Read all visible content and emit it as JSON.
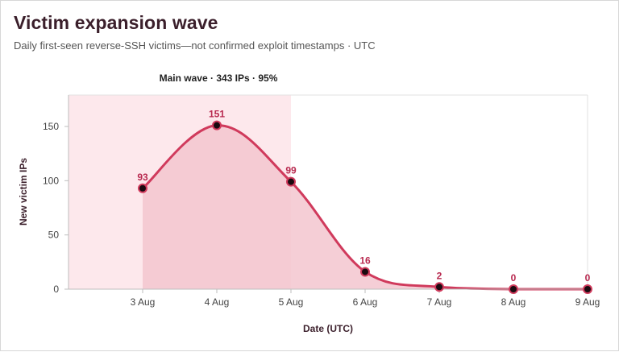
{
  "header": {
    "title": "Victim expansion wave",
    "subtitle": "Daily first-seen reverse-SSH victims—not confirmed exploit timestamps · UTC"
  },
  "colors": {
    "accent": "#d03a5c",
    "fill": "#f3c5cf",
    "band": "#fde8ec",
    "marker": "#1a0a10"
  },
  "chart_data": {
    "type": "area",
    "xlabel": "Date (UTC)",
    "ylabel": "New victim IPs",
    "x": [
      "3 Aug",
      "4 Aug",
      "5 Aug",
      "6 Aug",
      "7 Aug",
      "8 Aug",
      "9 Aug"
    ],
    "values": [
      93,
      151,
      99,
      16,
      2,
      0,
      0
    ],
    "ylim": [
      0,
      175
    ],
    "yticks": [
      0,
      50,
      100,
      150
    ],
    "grid": false,
    "highlight": {
      "label": "Main wave · 343 IPs · 95%",
      "from": "2 Aug",
      "to": "5 Aug"
    }
  }
}
